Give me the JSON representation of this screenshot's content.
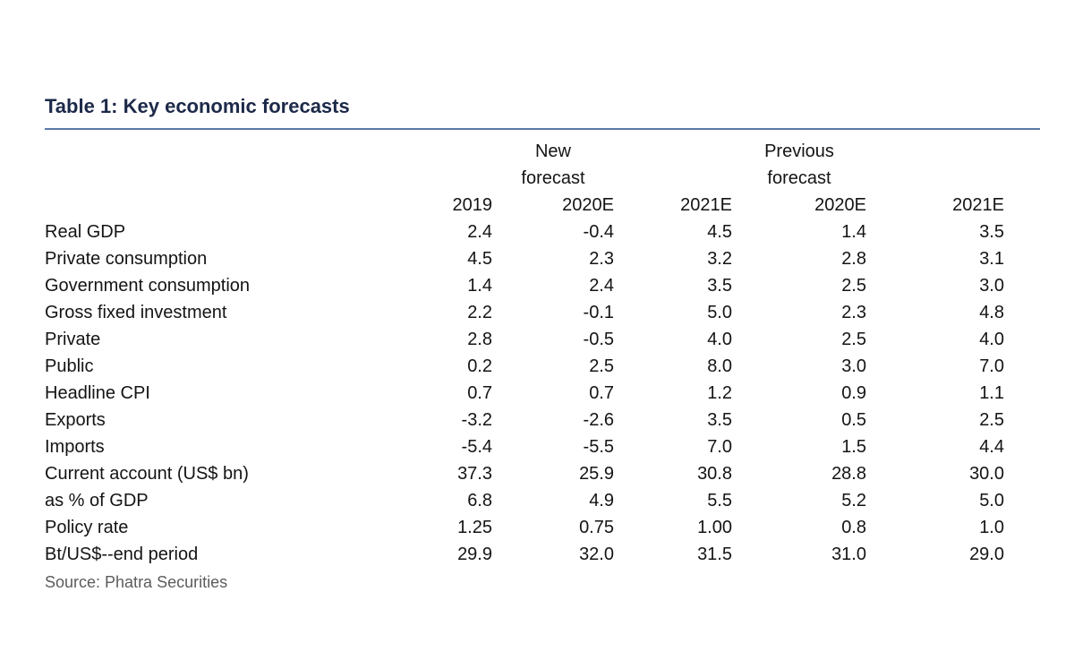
{
  "colors": {
    "title_navy": "#1d2949",
    "rule_blue": "#5b79a8",
    "body_text": "#141414",
    "source_gray": "#5c5c5c"
  },
  "chart_data": {
    "type": "table",
    "title": "Table 1: Key economic forecasts",
    "group_headers": {
      "new": "New\nforecast",
      "previous": "Previous\nforecast"
    },
    "columns": [
      "2019",
      "2020E",
      "2021E",
      "2020E",
      "2021E"
    ],
    "column_groups": [
      {
        "label": "New forecast",
        "columns": [
          "2020E",
          "2021E"
        ]
      },
      {
        "label": "Previous forecast",
        "columns": [
          "2020E",
          "2021E"
        ]
      }
    ],
    "rows": [
      {
        "label": "Real GDP",
        "indent": 0,
        "values": [
          "2.4",
          "-0.4",
          "4.5",
          "1.4",
          "3.5"
        ]
      },
      {
        "label": "Private consumption",
        "indent": 0,
        "values": [
          "4.5",
          "2.3",
          "3.2",
          "2.8",
          "3.1"
        ]
      },
      {
        "label": "Government consumption",
        "indent": 0,
        "values": [
          "1.4",
          "2.4",
          "3.5",
          "2.5",
          "3.0"
        ]
      },
      {
        "label": "Gross fixed investment",
        "indent": 0,
        "values": [
          "2.2",
          "-0.1",
          "5.0",
          "2.3",
          "4.8"
        ]
      },
      {
        "label": "Private",
        "indent": 1,
        "values": [
          "2.8",
          "-0.5",
          "4.0",
          "2.5",
          "4.0"
        ]
      },
      {
        "label": "Public",
        "indent": 1,
        "values": [
          "0.2",
          "2.5",
          "8.0",
          "3.0",
          "7.0"
        ]
      },
      {
        "label": "Headline CPI",
        "indent": 0,
        "values": [
          "0.7",
          "0.7",
          "1.2",
          "0.9",
          "1.1"
        ]
      },
      {
        "label": "Exports",
        "indent": 0,
        "values": [
          "-3.2",
          "-2.6",
          "3.5",
          "0.5",
          "2.5"
        ]
      },
      {
        "label": "Imports",
        "indent": 0,
        "values": [
          "-5.4",
          "-5.5",
          "7.0",
          "1.5",
          "4.4"
        ]
      },
      {
        "label": "Current account (US$ bn)",
        "indent": 0,
        "values": [
          "37.3",
          "25.9",
          "30.8",
          "28.8",
          "30.0"
        ]
      },
      {
        "label": "as % of GDP",
        "indent": 2,
        "values": [
          "6.8",
          "4.9",
          "5.5",
          "5.2",
          "5.0"
        ]
      },
      {
        "label": "Policy rate",
        "indent": 0,
        "values": [
          "1.25",
          "0.75",
          "1.00",
          "0.8",
          "1.0"
        ]
      },
      {
        "label": "Bt/US$--end period",
        "indent": 0,
        "values": [
          "29.9",
          "32.0",
          "31.5",
          "31.0",
          "29.0"
        ]
      }
    ],
    "source": "Source: Phatra Securities"
  }
}
